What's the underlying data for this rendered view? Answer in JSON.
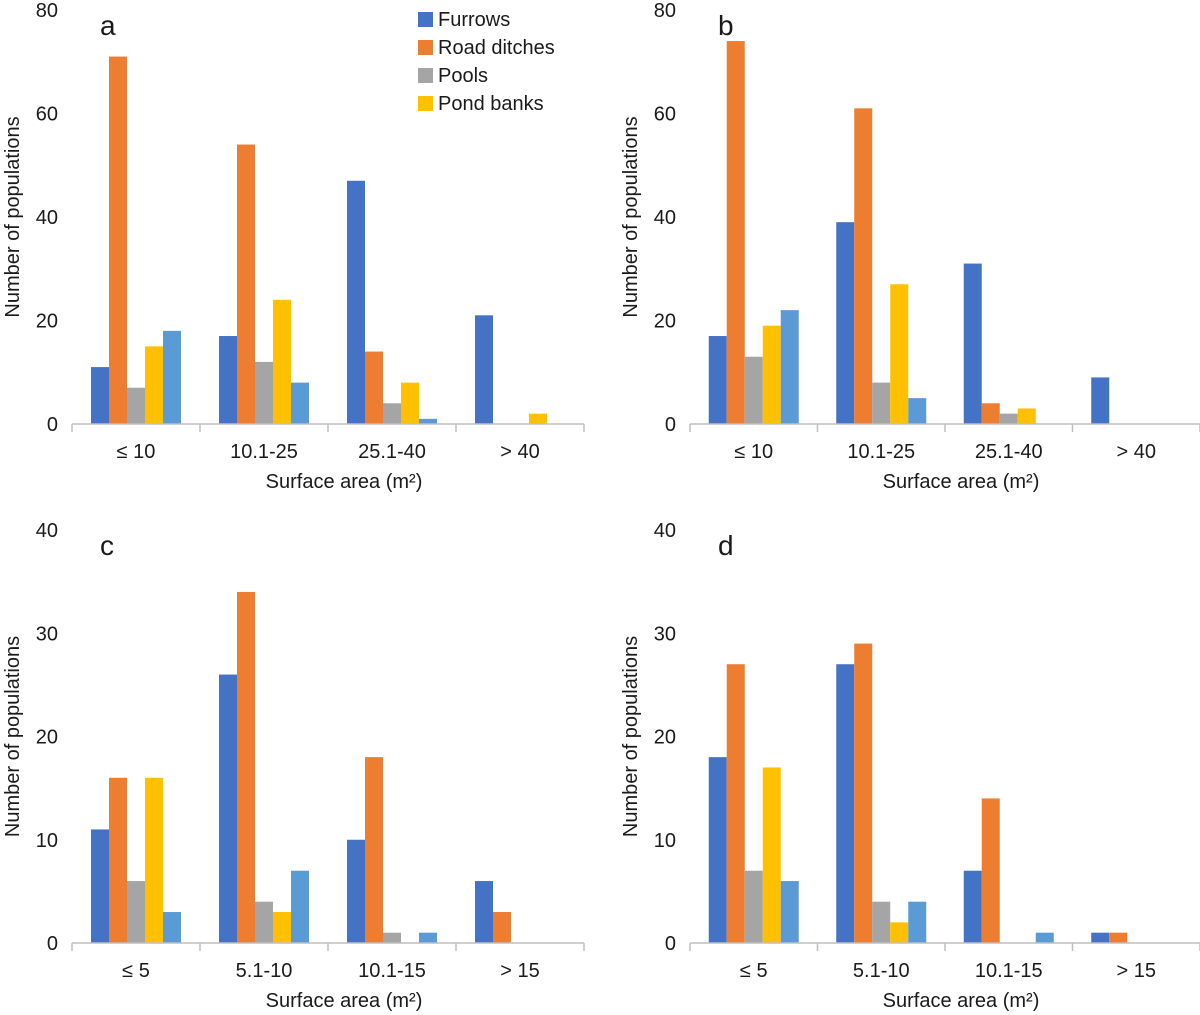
{
  "legend": [
    {
      "name": "Furrows",
      "color": "#4472c4"
    },
    {
      "name": "Road ditches",
      "color": "#ed7d31"
    },
    {
      "name": "Pools",
      "color": "#a5a5a5"
    },
    {
      "name": "Pond banks",
      "color": "#ffc000"
    }
  ],
  "series_colors": [
    "#4472c4",
    "#ed7d31",
    "#a5a5a5",
    "#ffc000",
    "#5b9bd5"
  ],
  "chart_data": [
    {
      "panel": "a",
      "type": "bar",
      "categories": [
        "≤ 10",
        "10.1-25",
        "25.1-40",
        "> 40"
      ],
      "series": [
        {
          "name": "Furrows",
          "values": [
            11,
            17,
            47,
            21
          ]
        },
        {
          "name": "Road ditches",
          "values": [
            71,
            54,
            14,
            0
          ]
        },
        {
          "name": "Pools",
          "values": [
            7,
            12,
            4,
            0
          ]
        },
        {
          "name": "Pond banks",
          "values": [
            15,
            24,
            8,
            2
          ]
        },
        {
          "name": "",
          "values": [
            18,
            8,
            1,
            0
          ]
        }
      ],
      "xlabel": "Surface area (m²)",
      "ylabel": "Number of populations",
      "ylim": [
        0,
        80
      ],
      "yticks": [
        0,
        20,
        40,
        60,
        80
      ]
    },
    {
      "panel": "b",
      "type": "bar",
      "categories": [
        "≤ 10",
        "10.1-25",
        "25.1-40",
        "> 40"
      ],
      "series": [
        {
          "name": "Furrows",
          "values": [
            17,
            39,
            31,
            9
          ]
        },
        {
          "name": "Road ditches",
          "values": [
            74,
            61,
            4,
            0
          ]
        },
        {
          "name": "Pools",
          "values": [
            13,
            8,
            2,
            0
          ]
        },
        {
          "name": "Pond banks",
          "values": [
            19,
            27,
            3,
            0
          ]
        },
        {
          "name": "",
          "values": [
            22,
            5,
            0,
            0
          ]
        }
      ],
      "xlabel": "Surface area (m²)",
      "ylabel": "Number of populations",
      "ylim": [
        0,
        80
      ],
      "yticks": [
        0,
        20,
        40,
        60,
        80
      ]
    },
    {
      "panel": "c",
      "type": "bar",
      "categories": [
        "≤ 5",
        "5.1-10",
        "10.1-15",
        "> 15"
      ],
      "series": [
        {
          "name": "Furrows",
          "values": [
            11,
            26,
            10,
            6
          ]
        },
        {
          "name": "Road ditches",
          "values": [
            16,
            34,
            18,
            3
          ]
        },
        {
          "name": "Pools",
          "values": [
            6,
            4,
            1,
            0
          ]
        },
        {
          "name": "Pond banks",
          "values": [
            16,
            3,
            0,
            0
          ]
        },
        {
          "name": "",
          "values": [
            3,
            7,
            1,
            0
          ]
        }
      ],
      "xlabel": "Surface area (m²)",
      "ylabel": "Number of populations",
      "ylim": [
        0,
        40
      ],
      "yticks": [
        0,
        10,
        20,
        30,
        40
      ]
    },
    {
      "panel": "d",
      "type": "bar",
      "categories": [
        "≤ 5",
        "5.1-10",
        "10.1-15",
        "> 15"
      ],
      "series": [
        {
          "name": "Furrows",
          "values": [
            18,
            27,
            7,
            1
          ]
        },
        {
          "name": "Road ditches",
          "values": [
            27,
            29,
            14,
            1
          ]
        },
        {
          "name": "Pools",
          "values": [
            7,
            4,
            0,
            0
          ]
        },
        {
          "name": "Pond banks",
          "values": [
            17,
            2,
            0,
            0
          ]
        },
        {
          "name": "",
          "values": [
            6,
            4,
            1,
            0
          ]
        }
      ],
      "xlabel": "Surface area (m²)",
      "ylabel": "Number of populations",
      "ylim": [
        0,
        40
      ],
      "yticks": [
        0,
        10,
        20,
        30,
        40
      ]
    }
  ]
}
